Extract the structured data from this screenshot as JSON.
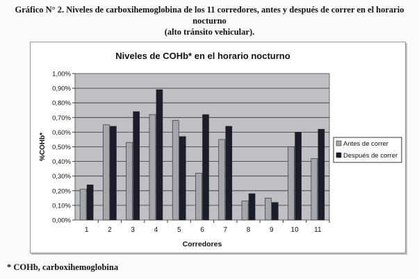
{
  "caption": {
    "line1": "Gráfico N° 2. Niveles de carboxihemoglobina de los 11 corredores, antes y después de correr en el horario nocturno",
    "line2": "(alto tránsito vehicular)."
  },
  "footnote": "* COHb, carboxihemoglobina",
  "chart_data": {
    "type": "bar",
    "title": "Niveles de COHb* en el horario nocturno",
    "xlabel": "Corredores",
    "ylabel": "%COHb*",
    "categories": [
      "1",
      "2",
      "3",
      "4",
      "5",
      "6",
      "7",
      "8",
      "9",
      "10",
      "11"
    ],
    "ylim": [
      0,
      1.0
    ],
    "yticks": [
      "0,00%",
      "0,10%",
      "0,20%",
      "0,30%",
      "0,40%",
      "0,50%",
      "0,60%",
      "0,70%",
      "0,80%",
      "0,90%",
      "1,00%"
    ],
    "grid": true,
    "legend_position": "right",
    "series": [
      {
        "name": "Antes de correr",
        "color": "#a6a6ae",
        "values": [
          0.21,
          0.65,
          0.53,
          0.72,
          0.68,
          0.32,
          0.55,
          0.13,
          0.15,
          0.5,
          0.42
        ]
      },
      {
        "name": "Después de correr",
        "color": "#1c1c2a",
        "values": [
          0.24,
          0.64,
          0.74,
          0.89,
          0.57,
          0.72,
          0.64,
          0.18,
          0.12,
          0.6,
          0.62
        ]
      }
    ],
    "plot_background": "#bfbfc4"
  }
}
